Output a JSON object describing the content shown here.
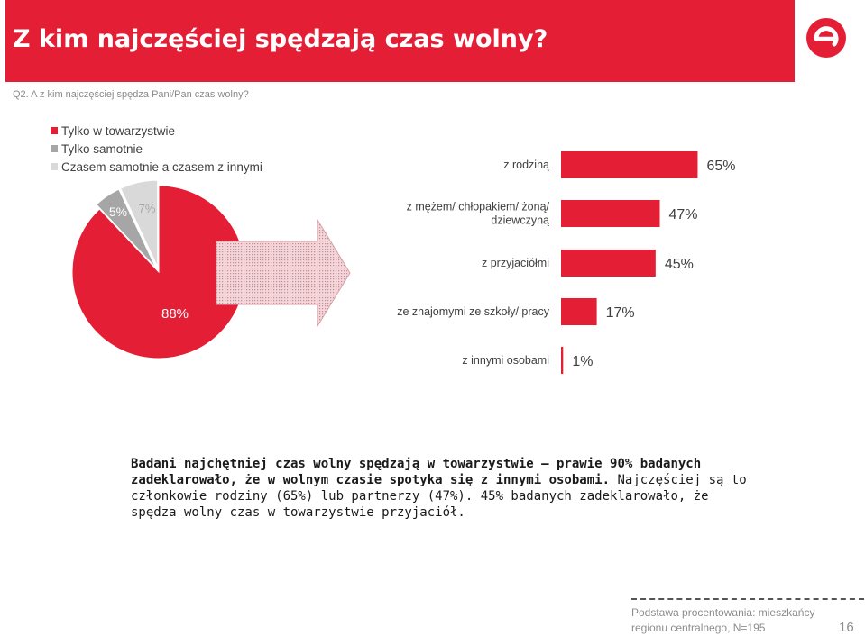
{
  "header": {
    "title": "Z kim najczęściej spędzają czas wolny?"
  },
  "question": "Q2. A z kim najczęściej spędza Pani/Pan czas wolny?",
  "colors": {
    "red": "#e31e35",
    "dark_gray": "#a6a6a6",
    "light_gray": "#d9d9d9",
    "arrow_fill": "#e8b8c0"
  },
  "logo_icon": "e-logo-icon",
  "chart_data": [
    {
      "type": "pie",
      "labels": [
        "Tylko w towarzystwie",
        "Tylko samotnie",
        "Czasem samotnie a czasem z innymi"
      ],
      "values": [
        88,
        5,
        7
      ],
      "value_labels": [
        "88%",
        "5%",
        "7%"
      ],
      "colors": [
        "#e31e35",
        "#a6a6a6",
        "#d9d9d9"
      ],
      "legend": "top-left"
    },
    {
      "type": "bar",
      "orientation": "horizontal",
      "categories": [
        "z rodziną",
        "z mężem/ chłopakiem/ żoną/ dziewczyną",
        "z przyjaciółmi",
        "ze znajomymi ze szkoły/ pracy",
        "z innymi osobami"
      ],
      "category_lines": [
        [
          "z rodziną"
        ],
        [
          "z mężem/ chłopakiem/ żoną/",
          "dziewczyną"
        ],
        [
          "z przyjaciółmi"
        ],
        [
          "ze znajomymi ze szkoły/ pracy"
        ],
        [
          "z innymi osobami"
        ]
      ],
      "values": [
        65,
        47,
        45,
        17,
        1
      ],
      "value_labels": [
        "65%",
        "47%",
        "45%",
        "17%",
        "1%"
      ],
      "xlim": [
        0,
        70
      ],
      "color": "#e31e35",
      "grid": false
    }
  ],
  "summary": {
    "bold": "Badani najchętniej czas wolny spędzają w towarzystwie – prawie 90% badanych zadeklarowało, że w wolnym czasie spotyka się z innymi osobami.",
    "normal": " Najczęściej są to członkowie rodziny (65%) lub partnerzy (47%). 45% badanych zadeklarowało, że spędza wolny czas w towarzystwie przyjaciół."
  },
  "footer": {
    "basis_line1": "Podstawa procentowania: mieszkańcy",
    "basis_line2": "regionu centralnego, N=195",
    "page": "16"
  }
}
